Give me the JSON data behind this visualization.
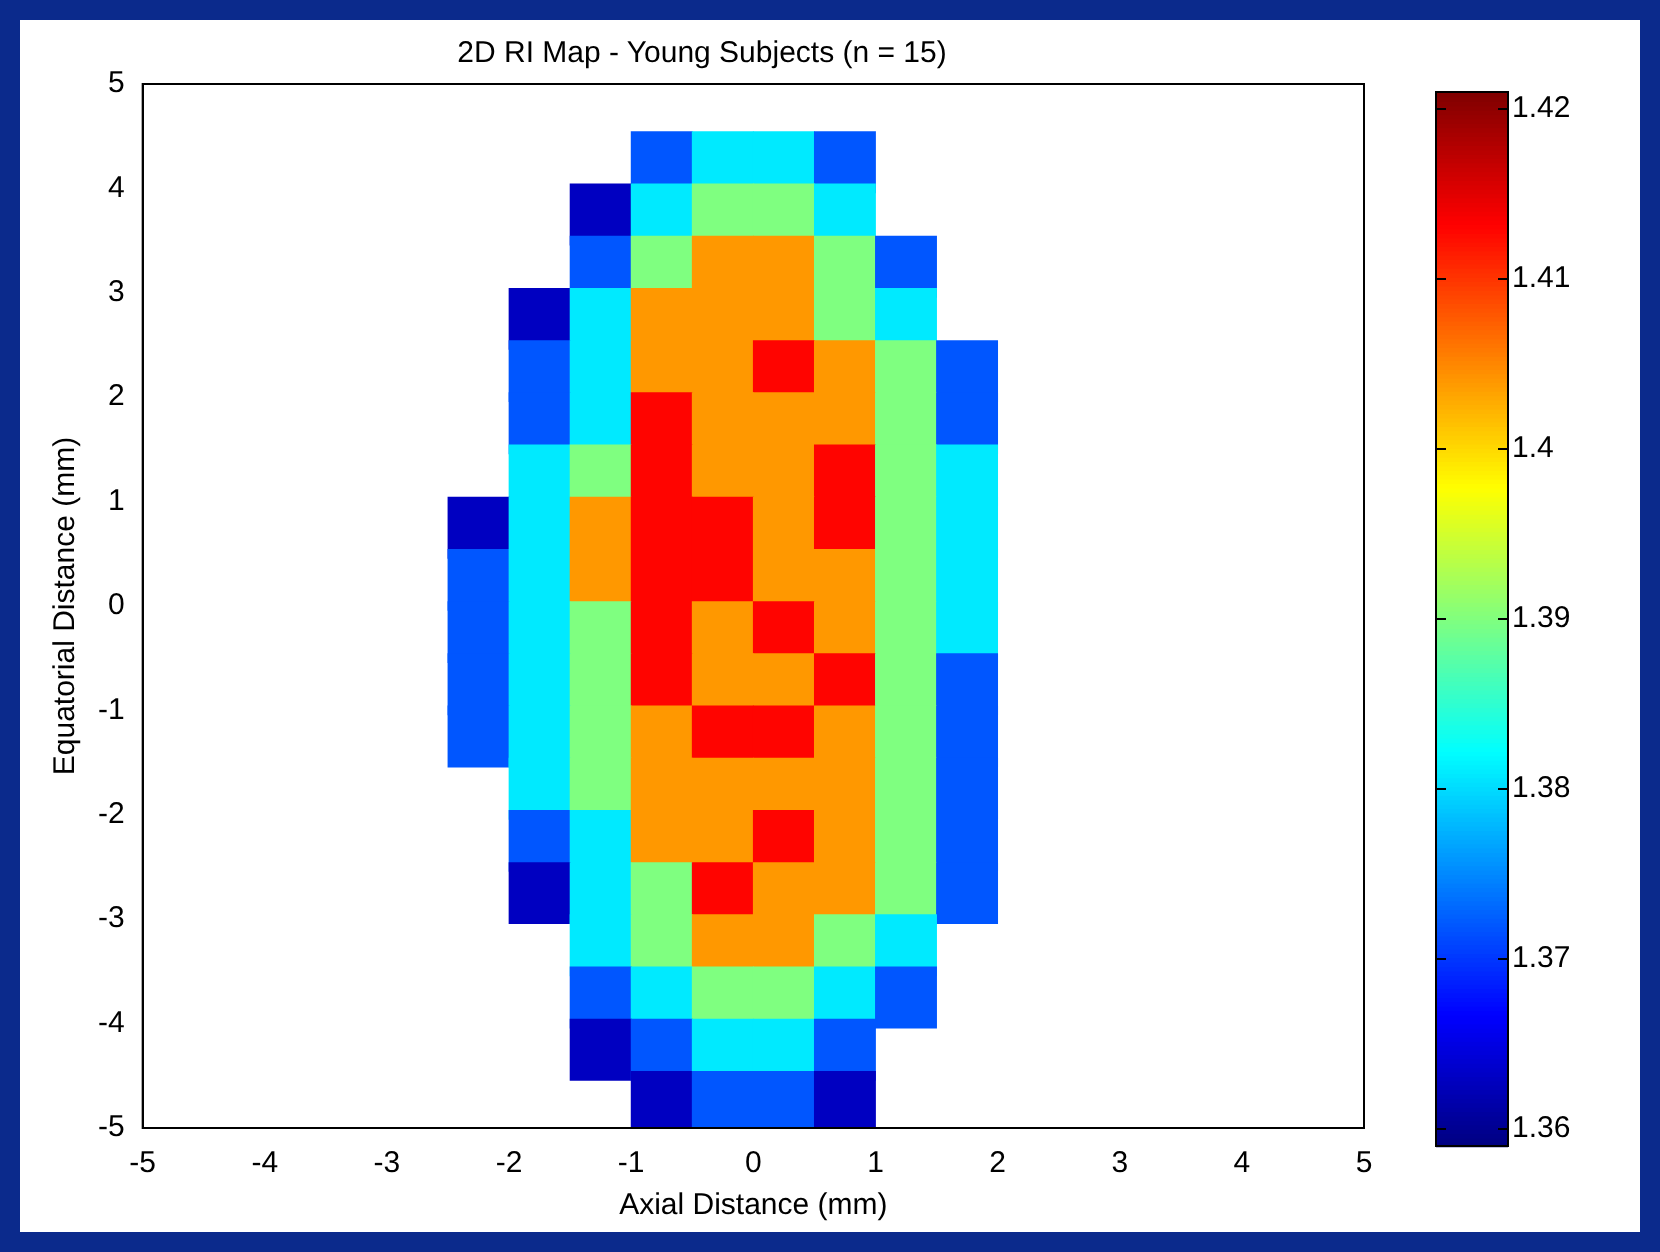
{
  "chart_data": {
    "type": "scatter",
    "title": "2D RI Map - Young Subjects (n = 15)",
    "xlabel": "Axial Distance (mm)",
    "ylabel": "Equatorial Distance (mm)",
    "xlim": [
      -5,
      5
    ],
    "xticks": [
      -5,
      -4,
      -3,
      -2,
      -1,
      0,
      1,
      2,
      3,
      4,
      5
    ],
    "ylim": [
      -5,
      5
    ],
    "yticks": [
      -5,
      -4,
      -3,
      -2,
      -1,
      0,
      1,
      2,
      3,
      4,
      5
    ],
    "marker": "square",
    "clim": [
      1.359,
      1.421
    ],
    "cticks": [
      1.36,
      1.37,
      1.38,
      1.39,
      {
        "value": 1.4,
        "label": "1.4"
      },
      1.41,
      1.42
    ],
    "x": [
      -0.75,
      -0.25,
      0.25,
      0.75,
      -1.25,
      -0.75,
      -0.25,
      0.25,
      0.75,
      -1.25,
      -0.75,
      -0.25,
      0.25,
      0.75,
      1.25,
      -1.75,
      -1.25,
      -0.75,
      -0.25,
      0.25,
      0.75,
      1.25,
      -1.75,
      -1.25,
      -0.75,
      -0.25,
      0.25,
      0.75,
      1.25,
      1.75,
      -1.75,
      -1.25,
      -0.75,
      -0.25,
      0.25,
      0.75,
      1.25,
      1.75,
      -1.75,
      -1.25,
      -0.75,
      -0.25,
      0.25,
      0.75,
      1.25,
      1.75,
      -2.25,
      -1.75,
      -1.25,
      -0.75,
      -0.25,
      0.25,
      0.75,
      1.25,
      1.75,
      -2.25,
      -1.75,
      -1.25,
      -0.75,
      -0.25,
      0.25,
      0.75,
      1.25,
      1.75,
      -2.25,
      -1.75,
      -1.25,
      -0.75,
      -0.25,
      0.25,
      0.75,
      1.25,
      1.75,
      -2.25,
      -1.75,
      -1.25,
      -0.75,
      -0.25,
      0.25,
      0.75,
      1.25,
      1.75,
      -2.25,
      -1.75,
      -1.25,
      -0.75,
      -0.25,
      0.25,
      0.75,
      1.25,
      1.75,
      -1.75,
      -1.25,
      -0.75,
      -0.25,
      0.25,
      0.75,
      1.25,
      1.75,
      -1.75,
      -1.25,
      -0.75,
      -0.25,
      0.25,
      0.75,
      1.25,
      1.75,
      -1.75,
      -1.25,
      -0.75,
      -0.25,
      0.25,
      0.75,
      1.25,
      1.75,
      -1.25,
      -0.75,
      -0.25,
      0.25,
      0.75,
      1.25,
      -1.25,
      -0.75,
      -0.25,
      0.25,
      0.75,
      1.25,
      -1.25,
      -0.75,
      -0.25,
      0.25,
      0.75,
      -0.75,
      -0.25,
      0.25,
      0.75
    ],
    "values": [
      4.25,
      4.25,
      4.25,
      4.25,
      3.75,
      3.75,
      3.75,
      3.75,
      3.75,
      3.25,
      3.25,
      3.25,
      3.25,
      3.25,
      3.25,
      2.75,
      2.75,
      2.75,
      2.75,
      2.75,
      2.75,
      2.75,
      2.25,
      2.25,
      2.25,
      2.25,
      2.25,
      2.25,
      2.25,
      2.25,
      1.75,
      1.75,
      1.75,
      1.75,
      1.75,
      1.75,
      1.75,
      1.75,
      1.25,
      1.25,
      1.25,
      1.25,
      1.25,
      1.25,
      1.25,
      1.25,
      0.75,
      0.75,
      0.75,
      0.75,
      0.75,
      0.75,
      0.75,
      0.75,
      0.75,
      0.25,
      0.25,
      0.25,
      0.25,
      0.25,
      0.25,
      0.25,
      0.25,
      0.25,
      -0.25,
      -0.25,
      -0.25,
      -0.25,
      -0.25,
      -0.25,
      -0.25,
      -0.25,
      -0.25,
      -0.75,
      -0.75,
      -0.75,
      -0.75,
      -0.75,
      -0.75,
      -0.75,
      -0.75,
      -0.75,
      -1.25,
      -1.25,
      -1.25,
      -1.25,
      -1.25,
      -1.25,
      -1.25,
      -1.25,
      -1.25,
      -1.75,
      -1.75,
      -1.75,
      -1.75,
      -1.75,
      -1.75,
      -1.75,
      -1.75,
      -2.25,
      -2.25,
      -2.25,
      -2.25,
      -2.25,
      -2.25,
      -2.25,
      -2.25,
      -2.75,
      -2.75,
      -2.75,
      -2.75,
      -2.75,
      -2.75,
      -2.75,
      -2.75,
      -3.25,
      -3.25,
      -3.25,
      -3.25,
      -3.25,
      -3.25,
      -3.75,
      -3.75,
      -3.75,
      -3.75,
      -3.75,
      -3.75,
      -4.25,
      -4.25,
      -4.25,
      -4.25,
      -4.25,
      -4.75,
      -4.75,
      -4.75,
      -4.75
    ],
    "cvalues": [
      1.372,
      1.381,
      1.381,
      1.372,
      1.363,
      1.381,
      1.39,
      1.39,
      1.381,
      1.372,
      1.39,
      1.404,
      1.404,
      1.39,
      1.372,
      1.363,
      1.381,
      1.404,
      1.404,
      1.404,
      1.39,
      1.381,
      1.372,
      1.381,
      1.404,
      1.404,
      1.413,
      1.404,
      1.39,
      1.372,
      1.372,
      1.381,
      1.413,
      1.404,
      1.404,
      1.404,
      1.39,
      1.372,
      1.381,
      1.39,
      1.413,
      1.404,
      1.404,
      1.413,
      1.39,
      1.381,
      1.363,
      1.381,
      1.404,
      1.413,
      1.413,
      1.404,
      1.413,
      1.39,
      1.381,
      1.372,
      1.381,
      1.404,
      1.413,
      1.413,
      1.404,
      1.404,
      1.39,
      1.381,
      1.372,
      1.381,
      1.39,
      1.413,
      1.404,
      1.413,
      1.404,
      1.39,
      1.381,
      1.372,
      1.381,
      1.39,
      1.413,
      1.404,
      1.404,
      1.413,
      1.39,
      1.372,
      1.372,
      1.381,
      1.39,
      1.404,
      1.413,
      1.413,
      1.404,
      1.39,
      1.372,
      1.381,
      1.39,
      1.404,
      1.404,
      1.404,
      1.404,
      1.39,
      1.372,
      1.372,
      1.381,
      1.404,
      1.404,
      1.413,
      1.404,
      1.39,
      1.372,
      1.363,
      1.381,
      1.39,
      1.413,
      1.404,
      1.404,
      1.39,
      1.372,
      1.381,
      1.39,
      1.404,
      1.404,
      1.39,
      1.381,
      1.372,
      1.381,
      1.39,
      1.39,
      1.381,
      1.372,
      1.363,
      1.372,
      1.381,
      1.381,
      1.372,
      1.363,
      1.372,
      1.372,
      1.363
    ]
  }
}
